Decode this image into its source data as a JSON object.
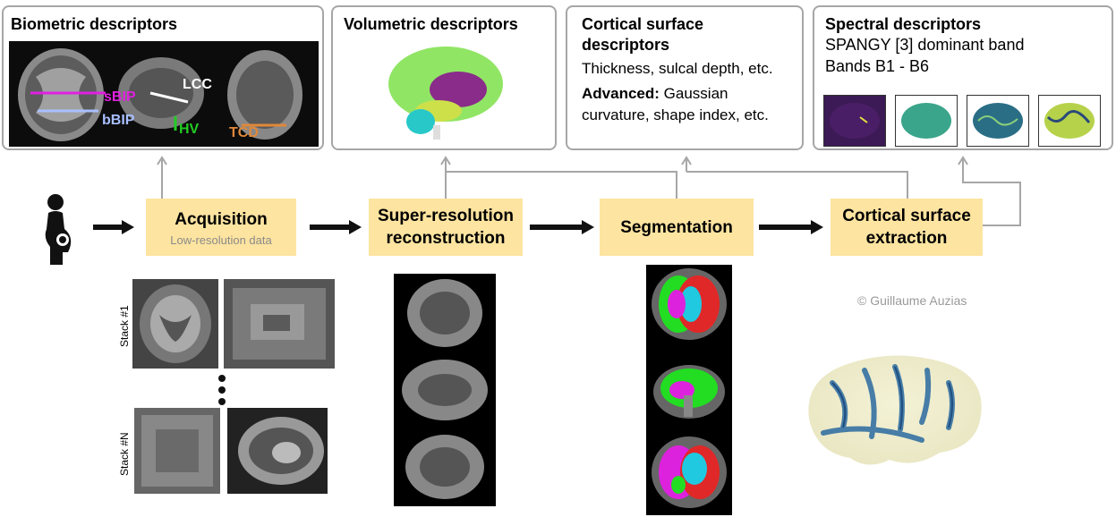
{
  "descriptors": {
    "biometric": {
      "title": "Biometric descriptors",
      "labels": {
        "sbip": "sBIP",
        "bbip": "bBIP",
        "lcc": "LCC",
        "hv": "HV",
        "tcd": "TCD"
      }
    },
    "volumetric": {
      "title": "Volumetric descriptors"
    },
    "cortical": {
      "title_line1": "Cortical surface",
      "title_line2": "descriptors",
      "line1": "Thickness, sulcal depth, etc.",
      "advanced_label": "Advanced:",
      "advanced_text1": "Gaussian",
      "advanced_text2": "curvature, shape index, etc."
    },
    "spectral": {
      "title": "Spectral descriptors",
      "line1": "SPANGY [3] dominant band",
      "line2": "Bands B1 - B6"
    }
  },
  "pipeline": {
    "acquisition": {
      "title": "Acquisition",
      "subtitle": "Low-resolution data"
    },
    "superres": {
      "title_line1": "Super-resolution",
      "title_line2": "reconstruction"
    },
    "segmentation": {
      "title": "Segmentation"
    },
    "surface": {
      "title_line1": "Cortical surface",
      "title_line2": "extraction"
    }
  },
  "stacks": {
    "first": "Stack #1",
    "last": "Stack #N"
  },
  "credit": "© Guillaume Auzias",
  "colors": {
    "step_fill": "#fde4a0",
    "box_border": "#a6a6a6",
    "connector": "#a6a6a6",
    "sbip": "#e020e0",
    "bbip": "#a8c0ff",
    "hv": "#22cc22",
    "tcd": "#e0883a"
  },
  "icons": [
    "pregnant-woman-icon",
    "arrow-right-icon",
    "vertical-dots-icon"
  ]
}
